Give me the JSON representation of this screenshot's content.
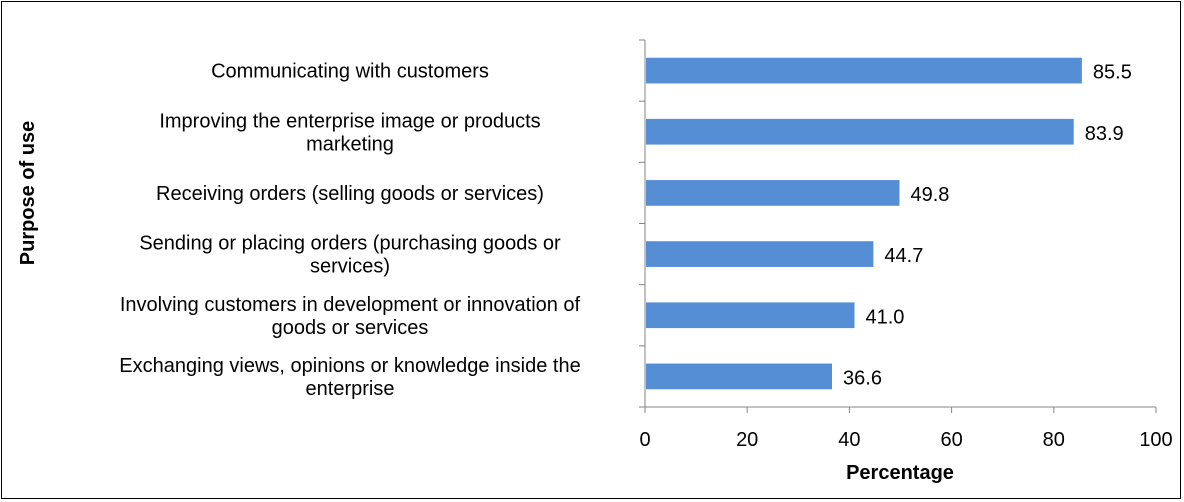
{
  "chart_data": {
    "type": "bar",
    "orientation": "horizontal",
    "title": "",
    "xlabel": "Percentage",
    "ylabel": "Purpose of use",
    "xlim": [
      0,
      100
    ],
    "xticks": [
      "0",
      "20",
      "40",
      "60",
      "80",
      "100"
    ],
    "grid": false,
    "legend": "none",
    "bar_color": "#558ED5",
    "categories": [
      [
        "Communicating with customers"
      ],
      [
        "Improving the enterprise image or products",
        "marketing"
      ],
      [
        "Receiving orders (selling goods or services)"
      ],
      [
        "Sending or placing orders (purchasing goods or",
        "services)"
      ],
      [
        "Involving customers in development or innovation of",
        "goods or services"
      ],
      [
        "Exchanging views, opinions or knowledge inside the",
        "enterprise"
      ]
    ],
    "values": [
      85.5,
      83.9,
      49.8,
      44.7,
      41.0,
      36.6
    ],
    "value_labels": [
      "85.5",
      "83.9",
      "49.8",
      "44.7",
      "41.0",
      "36.6"
    ]
  }
}
